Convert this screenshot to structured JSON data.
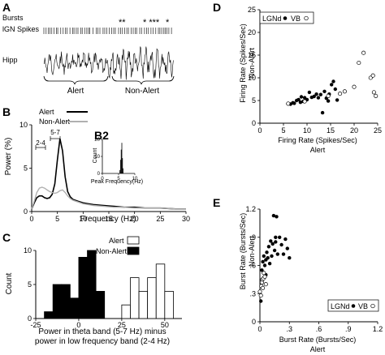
{
  "panels": {
    "A": {
      "label": "A",
      "rows": [
        "Bursts",
        "lGN Spikes",
        "Hipp"
      ],
      "burst_marks": [
        "**",
        "* ***",
        "*"
      ],
      "segments": [
        "Alert",
        "Non-Alert"
      ]
    },
    "B": {
      "label": "B",
      "ylabel": "Power (%)",
      "xlabel": "Frequency (Hz)",
      "band_labels": [
        "2-4",
        "5-7"
      ]
    },
    "B2": {
      "label": "B2",
      "ylabel": "Count",
      "xlabel": "Peak Frequency(Hz)"
    },
    "C": {
      "label": "C",
      "ylabel": "Count",
      "xlabel_line1": "Power in theta band (5-7 Hz) minus",
      "xlabel_line2": "power in low frequency band (2-4 Hz)"
    },
    "D": {
      "label": "D",
      "ylabel_line1": "Firing Rate (Spikes/Sec)",
      "ylabel_line2": "Non-Alert",
      "xlabel_line1": "Firing Rate (Spikes/Sec)",
      "xlabel_line2": "Alert",
      "legend_lgn": "LGNd",
      "legend_vb": "VB"
    },
    "E": {
      "label": "E",
      "ylabel_line1": "Burst Rate (Bursts/Sec)",
      "ylabel_line2": "Non-Alert",
      "xlabel_line1": "Burst Rate (Bursts/Sec)",
      "xlabel_line2": "Alert",
      "legend_lgn": "LGNd",
      "legend_vb": "VB"
    }
  },
  "chart_data": [
    {
      "id": "B",
      "type": "line",
      "xlabel": "Frequency (Hz)",
      "ylabel": "Power (%)",
      "xlim": [
        0,
        30
      ],
      "ylim": [
        0,
        10
      ],
      "xticks": [
        0,
        5,
        10,
        15,
        20,
        25,
        30
      ],
      "yticks": [
        0,
        5,
        10
      ],
      "legend": "top-right",
      "x": [
        0,
        0.5,
        1,
        1.5,
        2,
        2.5,
        3,
        3.5,
        4,
        4.5,
        5,
        5.5,
        6,
        6.5,
        7,
        7.5,
        8,
        9,
        10,
        11,
        12,
        14,
        16,
        18,
        20,
        22,
        25,
        28,
        30
      ],
      "series": [
        {
          "name": "Alert",
          "color": "#000000",
          "values": [
            0.3,
            1.0,
            1.6,
            1.8,
            1.8,
            1.6,
            1.5,
            1.6,
            2.0,
            3.2,
            6.0,
            8.4,
            7.0,
            4.0,
            2.3,
            1.7,
            1.4,
            1.2,
            1.0,
            0.9,
            0.8,
            0.7,
            0.6,
            0.5,
            0.5,
            0.4,
            0.4,
            0.3,
            0.3
          ]
        },
        {
          "name": "Non-Alert",
          "color": "#b0b0b0",
          "values": [
            0.3,
            1.2,
            2.2,
            2.7,
            2.8,
            2.7,
            2.5,
            2.3,
            2.2,
            2.1,
            2.2,
            2.4,
            2.5,
            2.2,
            1.8,
            1.5,
            1.3,
            1.1,
            0.9,
            0.8,
            0.7,
            0.6,
            0.5,
            0.5,
            0.4,
            0.4,
            0.4,
            0.3,
            0.3
          ]
        }
      ]
    },
    {
      "id": "B2",
      "type": "bar",
      "xlabel": "Peak Frequency(Hz)",
      "ylabel": "Count",
      "xlim": [
        0,
        10
      ],
      "ylim": [
        0,
        20
      ],
      "xticks": [
        0,
        5,
        10
      ],
      "yticks": [
        0,
        10,
        20
      ],
      "x": [
        5.4,
        5.6,
        5.8,
        6.0,
        6.2,
        6.4
      ],
      "values": [
        2,
        8,
        14,
        18,
        9,
        3
      ]
    },
    {
      "id": "C",
      "type": "bar",
      "xlabel": "Power in theta band (5-7 Hz) minus power in low frequency band (2-4 Hz)",
      "ylabel": "Count",
      "xlim": [
        -25,
        60
      ],
      "ylim": [
        0,
        10
      ],
      "xticks": [
        -25,
        0,
        25,
        50
      ],
      "yticks": [
        0,
        5,
        10
      ],
      "bin_width": 5,
      "legend": "top-right",
      "series": [
        {
          "name": "Alert",
          "color": "#ffffff",
          "bin_starts": [
            25,
            30,
            35,
            40,
            45,
            50
          ],
          "values": [
            2,
            6,
            4,
            6,
            8,
            4
          ]
        },
        {
          "name": "Non-Alert",
          "color": "#000000",
          "bin_starts": [
            -20,
            -15,
            -10,
            -5,
            0,
            5,
            10
          ],
          "values": [
            1,
            5,
            5,
            3,
            9,
            10,
            4
          ]
        }
      ]
    },
    {
      "id": "D",
      "type": "scatter",
      "xlabel": "Firing Rate (Spikes/Sec) Alert",
      "ylabel": "Firing Rate (Spikes/Sec) Non-Alert",
      "xlim": [
        0,
        25
      ],
      "ylim": [
        0,
        25
      ],
      "xticks": [
        0,
        5,
        10,
        15,
        20,
        25
      ],
      "yticks": [
        0,
        5,
        10,
        15,
        20,
        25
      ],
      "legend": "top-left",
      "series": [
        {
          "name": "LGNd",
          "marker": "filled",
          "points": [
            [
              6.5,
              4.2
            ],
            [
              7.0,
              4.5
            ],
            [
              7.3,
              4.4
            ],
            [
              7.8,
              5.0
            ],
            [
              8.2,
              5.2
            ],
            [
              8.6,
              4.6
            ],
            [
              8.8,
              5.8
            ],
            [
              9.2,
              4.8
            ],
            [
              9.5,
              5.6
            ],
            [
              10.0,
              5.2
            ],
            [
              10.5,
              6.8
            ],
            [
              11.0,
              5.7
            ],
            [
              11.5,
              5.9
            ],
            [
              12.0,
              6.4
            ],
            [
              12.4,
              5.6
            ],
            [
              12.9,
              6.3
            ],
            [
              13.3,
              2.3
            ],
            [
              13.7,
              7.0
            ],
            [
              14.1,
              5.5
            ],
            [
              14.5,
              4.9
            ],
            [
              14.7,
              6.4
            ],
            [
              15.2,
              8.5
            ],
            [
              15.6,
              9.2
            ],
            [
              16.0,
              7.5
            ],
            [
              16.4,
              5.1
            ]
          ]
        },
        {
          "name": "VB",
          "marker": "open",
          "points": [
            [
              6.0,
              4.3
            ],
            [
              9.5,
              4.8
            ],
            [
              14.5,
              6.0
            ],
            [
              17.0,
              6.5
            ],
            [
              18.0,
              7.0
            ],
            [
              20.0,
              8.0
            ],
            [
              21.0,
              13.3
            ],
            [
              22.0,
              15.5
            ],
            [
              23.5,
              10.0
            ],
            [
              24.0,
              10.5
            ],
            [
              24.2,
              6.8
            ],
            [
              24.6,
              6.0
            ]
          ]
        }
      ]
    },
    {
      "id": "E",
      "type": "scatter",
      "xlabel": "Burst Rate (Bursts/Sec) Alert",
      "ylabel": "Burst Rate (Bursts/Sec) Non-Alert",
      "xlim": [
        0,
        1.2
      ],
      "ylim": [
        0,
        1.2
      ],
      "xticks": [
        0,
        0.3,
        0.6,
        0.9,
        1.2
      ],
      "yticks": [
        0,
        0.3,
        0.6,
        0.9,
        1.2
      ],
      "legend": "bottom-right",
      "series": [
        {
          "name": "LGNd",
          "marker": "filled",
          "points": [
            [
              0.01,
              0.22
            ],
            [
              0.02,
              0.55
            ],
            [
              0.03,
              0.64
            ],
            [
              0.04,
              0.7
            ],
            [
              0.05,
              0.6
            ],
            [
              0.06,
              0.66
            ],
            [
              0.07,
              0.74
            ],
            [
              0.08,
              0.68
            ],
            [
              0.09,
              0.8
            ],
            [
              0.1,
              0.62
            ],
            [
              0.11,
              0.86
            ],
            [
              0.12,
              0.7
            ],
            [
              0.13,
              0.83
            ],
            [
              0.14,
              1.13
            ],
            [
              0.15,
              0.76
            ],
            [
              0.16,
              0.9
            ],
            [
              0.17,
              1.12
            ],
            [
              0.18,
              0.72
            ],
            [
              0.2,
              0.9
            ],
            [
              0.22,
              0.82
            ],
            [
              0.24,
              0.72
            ],
            [
              0.26,
              0.88
            ],
            [
              0.28,
              0.78
            ],
            [
              0.3,
              0.68
            ],
            [
              0.16,
              0.85
            ],
            [
              0.06,
              0.5
            ]
          ]
        },
        {
          "name": "VB",
          "marker": "open",
          "points": [
            [
              0.0,
              0.32
            ],
            [
              0.01,
              0.28
            ],
            [
              0.015,
              0.38
            ],
            [
              0.02,
              0.42
            ],
            [
              0.025,
              0.45
            ],
            [
              0.03,
              0.36
            ],
            [
              0.035,
              0.46
            ],
            [
              0.04,
              0.52
            ],
            [
              0.05,
              0.48
            ],
            [
              0.06,
              0.4
            ]
          ]
        }
      ]
    }
  ]
}
